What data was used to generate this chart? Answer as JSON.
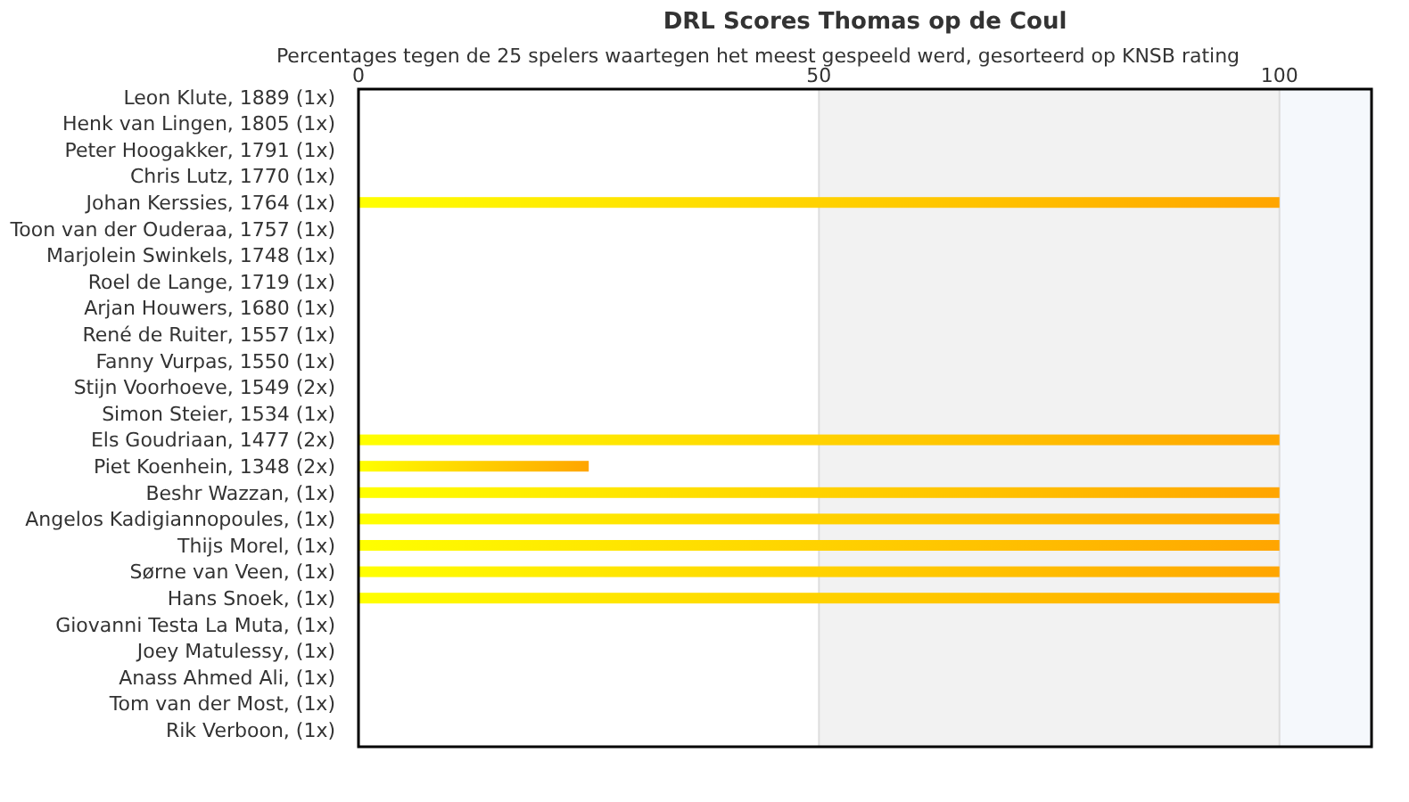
{
  "chart_data": {
    "type": "bar",
    "orientation": "horizontal",
    "title": "DRL Scores Thomas op de Coul",
    "subtitle": "Percentages tegen de 25 spelers waartegen het meest gespeeld werd, gesorteerd op KNSB rating",
    "categories": [
      "Leon Klute, 1889 (1x)",
      "Henk van Lingen, 1805 (1x)",
      "Peter Hoogakker, 1791 (1x)",
      "Chris Lutz, 1770 (1x)",
      "Johan Kerssies, 1764 (1x)",
      "Toon van der Ouderaa, 1757 (1x)",
      "Marjolein Swinkels, 1748 (1x)",
      "Roel de Lange, 1719 (1x)",
      "Arjan Houwers, 1680 (1x)",
      "René de Ruiter, 1557 (1x)",
      "Fanny Vurpas, 1550 (1x)",
      "Stijn Voorhoeve, 1549 (2x)",
      "Simon Steier, 1534 (1x)",
      "Els Goudriaan, 1477 (2x)",
      "Piet Koenhein, 1348 (2x)",
      "Beshr Wazzan,  (1x)",
      "Angelos Kadigiannopoules,  (1x)",
      "Thijs Morel,  (1x)",
      "Sørne van Veen,  (1x)",
      "Hans Snoek,  (1x)",
      "Giovanni Testa La Muta,  (1x)",
      "Joey Matulessy,  (1x)",
      "Anass Ahmed Ali,  (1x)",
      "Tom van der Most,  (1x)",
      "Rik Verboon,  (1x)"
    ],
    "values": [
      0,
      0,
      0,
      0,
      100,
      0,
      0,
      0,
      0,
      0,
      0,
      0,
      0,
      100,
      25,
      100,
      100,
      100,
      100,
      100,
      0,
      0,
      0,
      0,
      0
    ],
    "color": "#ffa500",
    "xlim": [
      0,
      110
    ],
    "xticks": [
      0,
      50,
      100
    ],
    "grid": "x",
    "bands": [
      {
        "axis": "x",
        "from": 50,
        "to": 100,
        "color": "#f2f2f2"
      },
      {
        "axis": "x",
        "from": 100,
        "to": 110,
        "color": "#f5f8fc"
      }
    ]
  }
}
